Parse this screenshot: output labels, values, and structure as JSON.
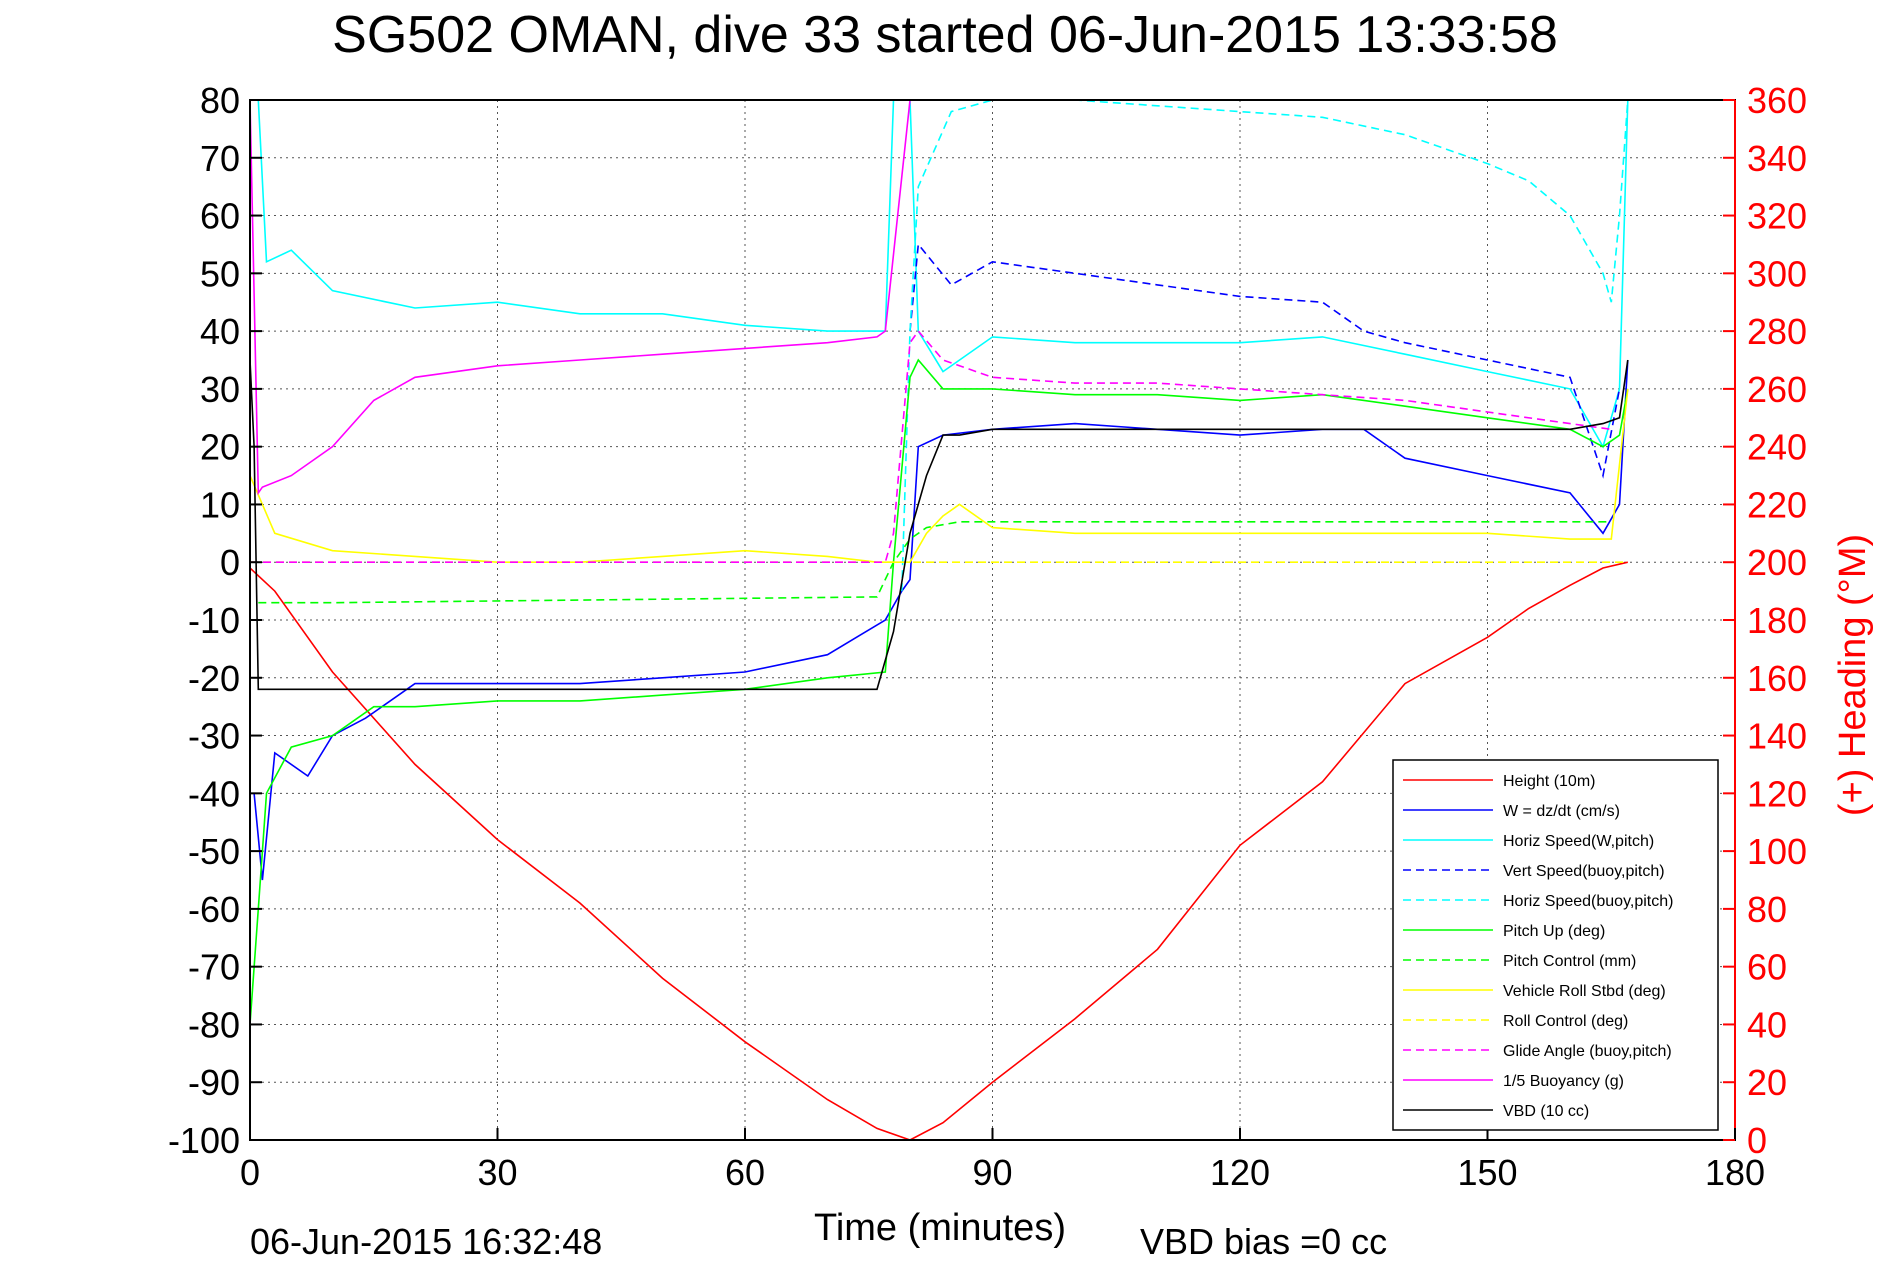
{
  "chart_data": {
    "type": "line",
    "title": "SG502 OMAN, dive 33 started 06-Jun-2015 13:33:58",
    "xlabel": "Time (minutes)",
    "ylabel_right": "(+) Heading (°M)",
    "footer_left": "06-Jun-2015 16:32:48",
    "footer_right": "VBD bias =0 cc",
    "xlim": [
      0,
      180
    ],
    "ylim": [
      -100,
      80
    ],
    "ylim_right": [
      0,
      360
    ],
    "x_ticks": [
      "0",
      "30",
      "60",
      "90",
      "120",
      "150",
      "180"
    ],
    "y_ticks": [
      "80",
      "70",
      "60",
      "50",
      "40",
      "30",
      "20",
      "10",
      "0",
      "-10",
      "-20",
      "-30",
      "-40",
      "-50",
      "-60",
      "-70",
      "-80",
      "-90",
      "-100"
    ],
    "y_right_ticks": [
      "360",
      "340",
      "320",
      "300",
      "280",
      "260",
      "240",
      "220",
      "200",
      "180",
      "160",
      "140",
      "120",
      "100",
      "80",
      "60",
      "40",
      "20",
      "0"
    ],
    "grid": true,
    "legend_position": "bottom-right",
    "colors": {
      "red": "#ff0000",
      "blue": "#0000ff",
      "cyan": "#00ffff",
      "green": "#00ff00",
      "yellow": "#ffff00",
      "magenta": "#ff00ff",
      "black": "#000000"
    },
    "series": [
      {
        "name": "Height (10m)",
        "color": "#ff0000",
        "dash": false,
        "x": [
          0,
          3,
          10,
          20,
          30,
          40,
          50,
          60,
          70,
          76,
          80,
          84,
          90,
          100,
          110,
          120,
          130,
          140,
          150,
          155,
          160,
          164,
          167
        ],
        "y": [
          -1,
          -5,
          -19,
          -35,
          -48,
          -59,
          -72,
          -83,
          -93,
          -98,
          -100,
          -97,
          -90,
          -79,
          -67,
          -49,
          -38,
          -21,
          -13,
          -8,
          -4,
          -1,
          0
        ]
      },
      {
        "name": "W = dz/dt (cm/s)",
        "color": "#0000ff",
        "dash": false,
        "x": [
          0.5,
          1.5,
          3,
          7,
          10,
          14,
          20,
          30,
          40,
          50,
          60,
          70,
          77,
          79,
          80,
          81,
          84,
          90,
          100,
          110,
          120,
          130,
          135,
          140,
          150,
          160,
          164,
          166,
          167
        ],
        "y": [
          -40,
          -55,
          -33,
          -37,
          -30,
          -27,
          -21,
          -21,
          -21,
          -20,
          -19,
          -16,
          -10,
          -5,
          -3,
          20,
          22,
          23,
          24,
          23,
          22,
          23,
          23,
          18,
          15,
          12,
          5,
          10,
          35
        ]
      },
      {
        "name": "Horiz Speed(W,pitch)",
        "color": "#00ffff",
        "dash": false,
        "x": [
          1,
          2,
          5,
          10,
          20,
          30,
          40,
          50,
          60,
          70,
          77,
          78,
          80,
          81,
          84,
          90,
          100,
          110,
          120,
          130,
          140,
          150,
          160,
          164,
          166,
          167
        ],
        "y": [
          80,
          52,
          54,
          47,
          44,
          45,
          43,
          43,
          41,
          40,
          40,
          80,
          80,
          40,
          33,
          39,
          38,
          38,
          38,
          39,
          36,
          33,
          30,
          20,
          30,
          80
        ]
      },
      {
        "name": "Vert Speed(buoy,pitch)",
        "color": "#0000ff",
        "dash": true,
        "x": [
          80,
          81,
          85,
          90,
          100,
          110,
          120,
          130,
          135,
          140,
          150,
          160,
          164,
          166
        ],
        "y": [
          40,
          55,
          48,
          52,
          50,
          48,
          46,
          45,
          40,
          38,
          35,
          32,
          15,
          30
        ]
      },
      {
        "name": "Horiz Speed(buoy,pitch)",
        "color": "#00ffff",
        "dash": true,
        "x": [
          79,
          80,
          81,
          85,
          90,
          100,
          110,
          120,
          130,
          140,
          150,
          155,
          160,
          164,
          165,
          166,
          167
        ],
        "y": [
          -5,
          40,
          65,
          78,
          80,
          80,
          79,
          78,
          77,
          74,
          69,
          66,
          60,
          50,
          45,
          60,
          80
        ]
      },
      {
        "name": "Pitch Up (deg)",
        "color": "#00ff00",
        "dash": false,
        "x": [
          0,
          1,
          2,
          5,
          10,
          15,
          20,
          30,
          40,
          50,
          60,
          70,
          77,
          78,
          80,
          81,
          84,
          90,
          100,
          110,
          120,
          130,
          140,
          150,
          160,
          164,
          166,
          167
        ],
        "y": [
          -80,
          -60,
          -40,
          -32,
          -30,
          -25,
          -25,
          -24,
          -24,
          -23,
          -22,
          -20,
          -19,
          0,
          32,
          35,
          30,
          30,
          29,
          29,
          28,
          29,
          27,
          25,
          23,
          20,
          22,
          30
        ]
      },
      {
        "name": "Pitch Control (mm)",
        "color": "#00ff00",
        "dash": true,
        "x": [
          1,
          3,
          10,
          76,
          78,
          80,
          82,
          86,
          90,
          120,
          150,
          165
        ],
        "y": [
          -7,
          -7,
          -7,
          -6,
          0,
          4,
          6,
          7,
          7,
          7,
          7,
          7
        ]
      },
      {
        "name": "Vehicle Roll Stbd (deg)",
        "color": "#ffff00",
        "dash": false,
        "x": [
          0,
          3,
          10,
          20,
          30,
          40,
          50,
          60,
          70,
          76,
          80,
          82,
          84,
          86,
          90,
          100,
          110,
          120,
          130,
          140,
          150,
          160,
          165,
          167
        ],
        "y": [
          15,
          5,
          2,
          1,
          0,
          0,
          1,
          2,
          1,
          0,
          0,
          5,
          8,
          10,
          6,
          5,
          5,
          5,
          5,
          5,
          5,
          4,
          4,
          30
        ]
      },
      {
        "name": "Roll Control (deg)",
        "color": "#ffff00",
        "dash": true,
        "x": [
          0,
          80,
          80.5,
          167
        ],
        "y": [
          0,
          0,
          0,
          0
        ]
      },
      {
        "name": "Glide Angle (buoy,pitch)",
        "color": "#ff00ff",
        "dash": true,
        "x": [
          0,
          77,
          78,
          80,
          81,
          84,
          90,
          100,
          110,
          120,
          130,
          140,
          150,
          160,
          165
        ],
        "y": [
          0,
          0,
          5,
          38,
          40,
          35,
          32,
          31,
          31,
          30,
          29,
          28,
          26,
          24,
          23
        ]
      },
      {
        "name": "1/5 Buoyancy (g)",
        "color": "#ff00ff",
        "dash": false,
        "x": [
          0,
          1,
          1.5,
          5,
          10,
          15,
          20,
          30,
          40,
          50,
          60,
          70,
          76,
          77,
          80
        ],
        "y": [
          80,
          12,
          13,
          15,
          20,
          28,
          32,
          34,
          35,
          36,
          37,
          38,
          39,
          40,
          80
        ]
      },
      {
        "name": "VBD (10 cc)",
        "color": "#000000",
        "dash": false,
        "x": [
          0,
          0.5,
          1,
          76,
          78,
          80,
          82,
          84,
          86,
          90,
          100,
          120,
          140,
          160,
          164,
          166,
          167
        ],
        "y": [
          35,
          20,
          -22,
          -22,
          -12,
          5,
          15,
          22,
          22,
          23,
          23,
          23,
          23,
          23,
          24,
          25,
          35
        ]
      }
    ]
  }
}
